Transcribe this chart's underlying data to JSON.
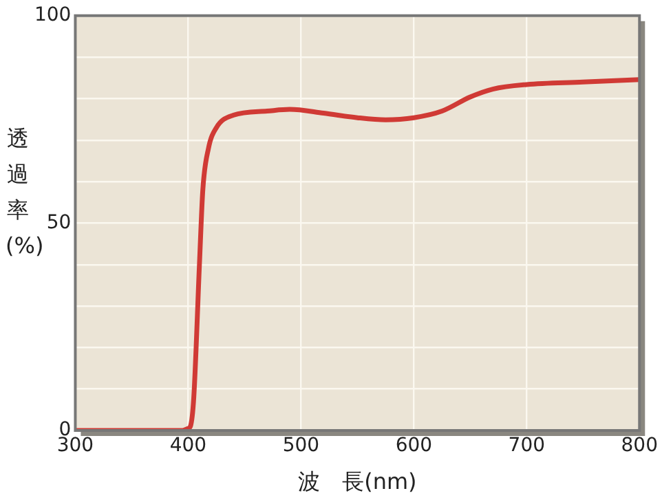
{
  "chart_data": {
    "type": "line",
    "xlabel": "波　長(nm)",
    "ylabel": "透過率(%)",
    "x": [
      300,
      395,
      400,
      402,
      405,
      410,
      413,
      418,
      425,
      440,
      470,
      490,
      520,
      550,
      575,
      600,
      625,
      650,
      670,
      700,
      750,
      800
    ],
    "series": [
      {
        "color": "#d03a35",
        "values": [
          0,
          0,
          0.5,
          1,
          8,
          40,
          58,
          68,
          73,
          76,
          77,
          77.4,
          76.5,
          75.4,
          74.9,
          75.4,
          77,
          80.4,
          82.3,
          83.4,
          84,
          84.6
        ]
      }
    ],
    "xlim": [
      300,
      800
    ],
    "xticks": [
      300,
      400,
      500,
      600,
      700,
      800
    ],
    "ylim": [
      0,
      100
    ],
    "yticks": [
      0,
      {
        "value": 10,
        "label": null
      },
      {
        "value": 20,
        "label": null
      },
      {
        "value": 30,
        "label": null
      },
      {
        "value": 40,
        "label": null
      },
      50,
      {
        "value": 60,
        "label": null
      },
      {
        "value": 70,
        "label": null
      },
      {
        "value": 80,
        "label": null
      },
      {
        "value": 90,
        "label": null
      },
      100
    ],
    "grid": true,
    "legend": false,
    "marker": "none",
    "line_style": "solid"
  }
}
